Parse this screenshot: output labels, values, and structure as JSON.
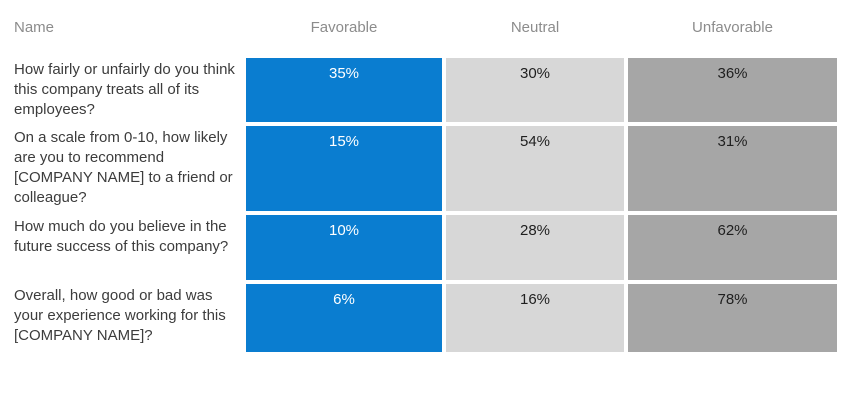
{
  "table": {
    "headers": {
      "name": "Name",
      "favorable": "Favorable",
      "neutral": "Neutral",
      "unfavorable": "Unfavorable"
    },
    "rows": [
      {
        "question": "How fairly or unfairly do you think this company treats all of its employees?",
        "favorable": "35%",
        "neutral": "30%",
        "unfavorable": "36%"
      },
      {
        "question": "On a scale from 0-10, how likely are you to recommend [COMPANY NAME] to a friend or colleague?",
        "favorable": "15%",
        "neutral": "54%",
        "unfavorable": "31%"
      },
      {
        "question": "How much do you believe in the future success of this company?",
        "favorable": "10%",
        "neutral": "28%",
        "unfavorable": "62%"
      },
      {
        "question": "Overall, how good or bad was your experience working for this [COMPANY NAME]?",
        "favorable": "6%",
        "neutral": "16%",
        "unfavorable": "78%"
      }
    ]
  },
  "colors": {
    "favorable": "#0a7dd0",
    "neutral": "#d7d7d7",
    "unfavorable": "#a6a6a6",
    "header_text": "#8c8c8c",
    "question_text": "#3c3c3c",
    "cell_text_dark": "#1f1f1f",
    "cell_text_light": "#ffffff"
  },
  "chart_data": {
    "type": "table",
    "title": "",
    "columns": [
      "Name",
      "Favorable",
      "Neutral",
      "Unfavorable"
    ],
    "categories": [
      "How fairly or unfairly do you think this company treats all of its employees?",
      "On a scale from 0-10, how likely are you to recommend [COMPANY NAME] to a friend or colleague?",
      "How much do you believe in the future success of this company?",
      "Overall, how good or bad was your experience working for this [COMPANY NAME]?"
    ],
    "series": [
      {
        "name": "Favorable",
        "values": [
          35,
          15,
          10,
          6
        ]
      },
      {
        "name": "Neutral",
        "values": [
          30,
          54,
          28,
          16
        ]
      },
      {
        "name": "Unfavorable",
        "values": [
          36,
          31,
          62,
          78
        ]
      }
    ],
    "value_format": "percent",
    "layout": "matrix table, question labels left, one colored cell per response category, values top-centered in cells"
  }
}
